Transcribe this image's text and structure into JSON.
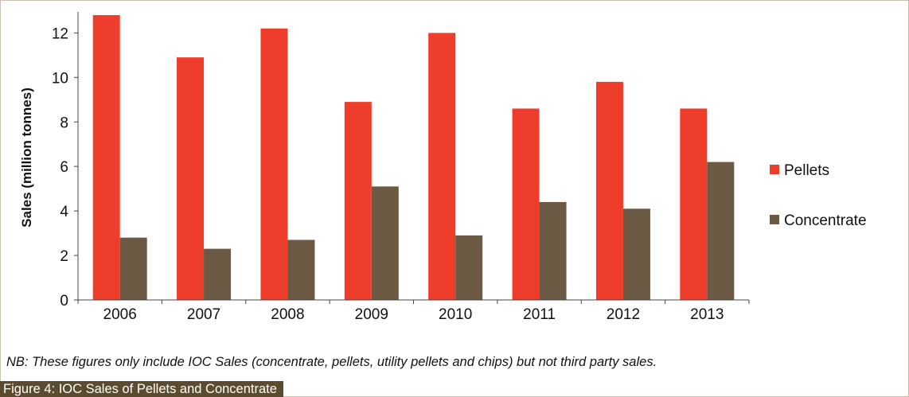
{
  "chart_data": {
    "type": "bar",
    "categories": [
      "2006",
      "2007",
      "2008",
      "2009",
      "2010",
      "2011",
      "2012",
      "2013"
    ],
    "series": [
      {
        "name": "Pellets",
        "color": "#ee3d2a",
        "values": [
          12.8,
          10.9,
          12.2,
          8.9,
          12.0,
          8.6,
          9.8,
          8.6
        ]
      },
      {
        "name": "Concentrate",
        "color": "#6c5a44",
        "values": [
          2.8,
          2.3,
          2.7,
          5.1,
          2.9,
          4.4,
          4.1,
          6.2
        ]
      }
    ],
    "ylabel": "Sales (million tonnes)",
    "xlabel": "",
    "ylim": [
      0,
      12.8
    ],
    "yticks": [
      0,
      2,
      4,
      6,
      8,
      10,
      12
    ],
    "grid": false,
    "legend": "right"
  },
  "note": "NB: These figures only include IOC Sales (concentrate, pellets, utility pellets and chips) but not third party sales.",
  "caption": "Figure 4: IOC Sales of Pellets and Concentrate"
}
